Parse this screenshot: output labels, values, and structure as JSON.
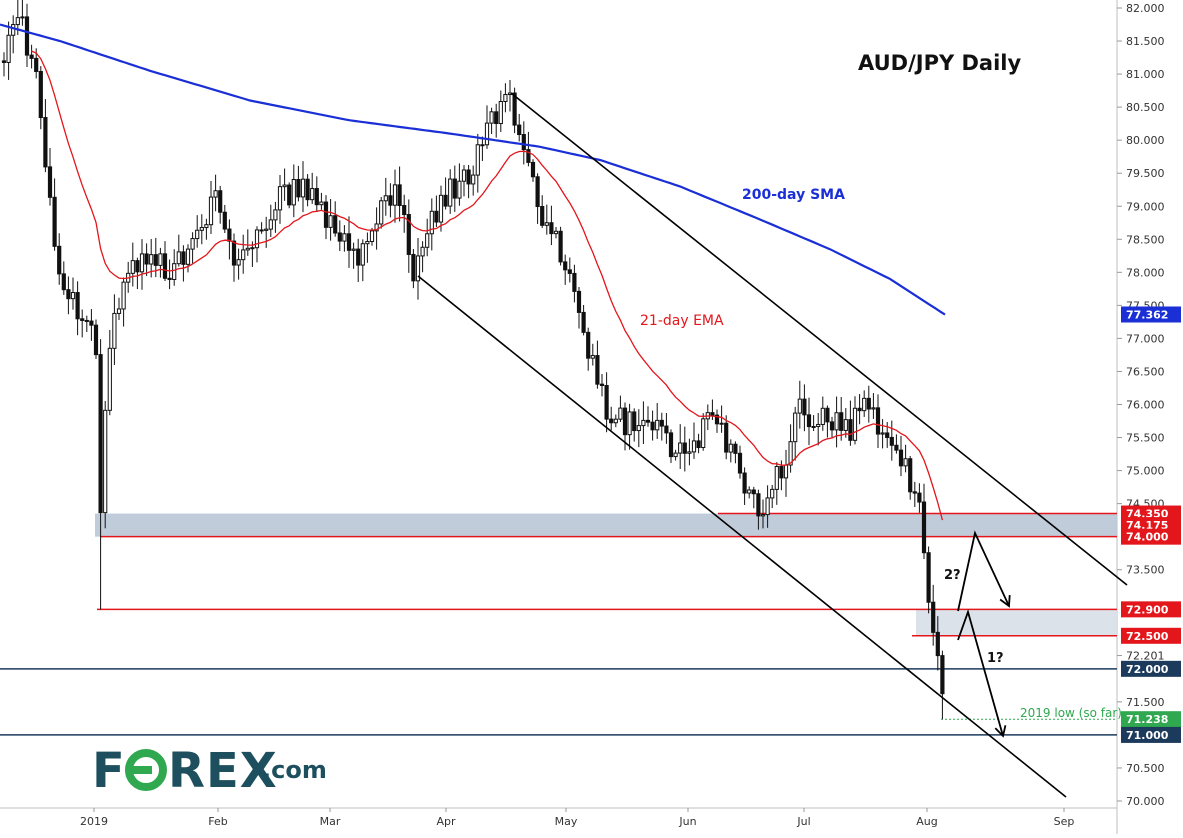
{
  "chart_data": {
    "type": "candlestick",
    "title": "AUD/JPY Daily",
    "y_range": [
      70.0,
      82.0
    ],
    "x_labels": [
      "2019",
      "Feb",
      "Mar",
      "Apr",
      "May",
      "Jun",
      "Jul",
      "Aug",
      "Sep"
    ],
    "y_ticks": [
      {
        "v": 82.0,
        "label": "82.000"
      },
      {
        "v": 81.5,
        "label": "81.500"
      },
      {
        "v": 81.0,
        "label": "81.000"
      },
      {
        "v": 80.5,
        "label": "80.500"
      },
      {
        "v": 80.0,
        "label": "80.000"
      },
      {
        "v": 79.5,
        "label": "79.500"
      },
      {
        "v": 79.0,
        "label": "79.000"
      },
      {
        "v": 78.5,
        "label": "78.500"
      },
      {
        "v": 78.0,
        "label": "78.000"
      },
      {
        "v": 77.5,
        "label": "77.500"
      },
      {
        "v": 77.0,
        "label": "77.000"
      },
      {
        "v": 76.5,
        "label": "76.500"
      },
      {
        "v": 76.0,
        "label": "76.000"
      },
      {
        "v": 75.5,
        "label": "75.500"
      },
      {
        "v": 75.0,
        "label": "75.000"
      },
      {
        "v": 74.5,
        "label": "74.500"
      },
      {
        "v": 73.5,
        "label": "73.500"
      },
      {
        "v": 72.201,
        "label": "72.201"
      },
      {
        "v": 71.5,
        "label": "71.500"
      },
      {
        "v": 70.5,
        "label": "70.500"
      },
      {
        "v": 70.0,
        "label": "70.000"
      }
    ],
    "price_levels": [
      {
        "value": 77.362,
        "label": "77.362",
        "color": "#1a2fd6"
      },
      {
        "value": 74.35,
        "label": "74.350",
        "color": "#e3161c"
      },
      {
        "value": 74.175,
        "label": "74.175",
        "color": "#e3161c"
      },
      {
        "value": 74.0,
        "label": "74.000",
        "color": "#e3161c"
      },
      {
        "value": 72.9,
        "label": "72.900",
        "color": "#e3161c"
      },
      {
        "value": 72.5,
        "label": "72.500",
        "color": "#e3161c"
      },
      {
        "value": 72.0,
        "label": "72.000",
        "color": "#1b3a5c"
      },
      {
        "value": 71.238,
        "label": "71.238",
        "color": "#2fa84f"
      },
      {
        "value": 71.0,
        "label": "71.000",
        "color": "#1b3a5c"
      }
    ],
    "series": [
      {
        "name": "200-day SMA",
        "color": "#1a2fd6"
      },
      {
        "name": "21-day EMA",
        "color": "#e3161c"
      }
    ],
    "annotations": {
      "low_label": "2019 low (so far)",
      "scenario_1": "1?",
      "scenario_2": "2?"
    },
    "colors": {
      "support_zone": "#b9c6d5",
      "resistance_zone": "#d9e0e8",
      "red_level": "#e3161c",
      "navy_level": "#1b3a5c",
      "green_level": "#2fa84f",
      "candles": "#111111"
    }
  },
  "branding": {
    "logo_prefix": "F",
    "logo_suffix": "REX",
    "logo_domain": ".com"
  }
}
